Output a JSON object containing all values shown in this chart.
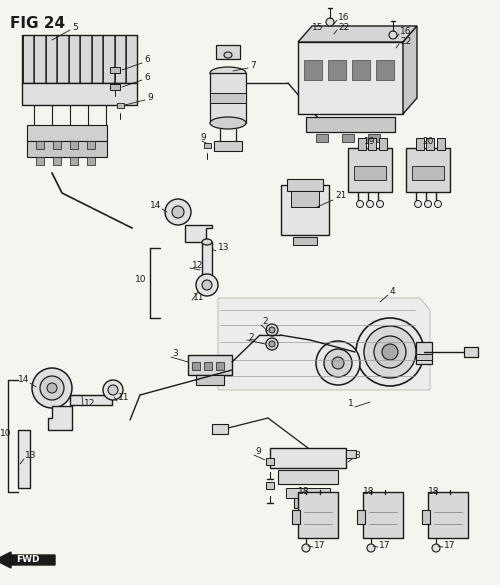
{
  "title": "FIG 24",
  "bg_color": "#f5f5f0",
  "line_color": "#1a1a1a",
  "fig_width": 5.0,
  "fig_height": 5.85,
  "dpi": 100
}
